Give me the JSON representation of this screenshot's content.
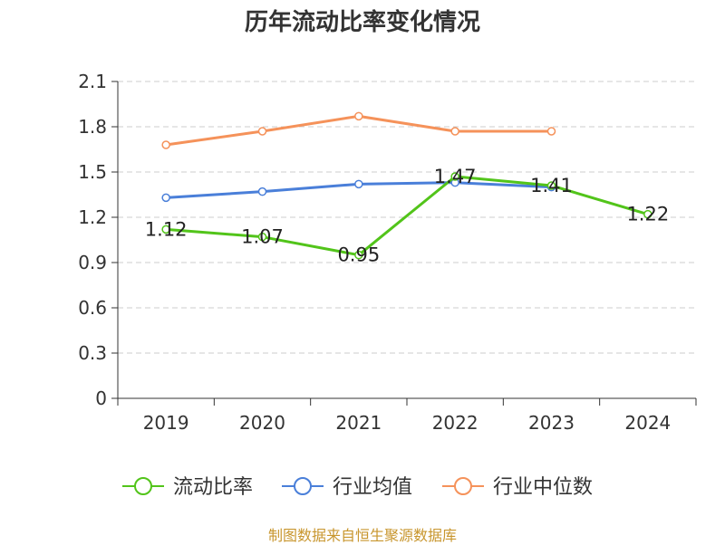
{
  "title": "历年流动比率变化情况",
  "source": "制图数据来自恒生聚源数据库",
  "chart_data": {
    "type": "line",
    "title": "历年流动比率变化情况",
    "categories": [
      "2019",
      "2020",
      "2021",
      "2022",
      "2023",
      "2024"
    ],
    "ylim": [
      0,
      2.1
    ],
    "yticks": [
      0,
      0.3,
      0.6,
      0.9,
      1.2,
      1.5,
      1.8,
      2.1
    ],
    "ytick_labels": [
      "0",
      "0.3",
      "0.6",
      "0.9",
      "1.2",
      "1.5",
      "1.8",
      "2.1"
    ],
    "grid": true,
    "legend_position": "bottom",
    "series": [
      {
        "name": "流动比率",
        "color": "#52c41a",
        "values": [
          1.12,
          1.07,
          0.95,
          1.47,
          1.41,
          1.22
        ],
        "labels": [
          "1.12",
          "1.07",
          "0.95",
          "1.47",
          "1.41",
          "1.22"
        ]
      },
      {
        "name": "行业均值",
        "color": "#4a7fd9",
        "values": [
          1.33,
          1.37,
          1.42,
          1.43,
          1.4,
          null
        ]
      },
      {
        "name": "行业中位数",
        "color": "#f5925a",
        "values": [
          1.68,
          1.77,
          1.87,
          1.77,
          1.77,
          null
        ]
      }
    ]
  }
}
